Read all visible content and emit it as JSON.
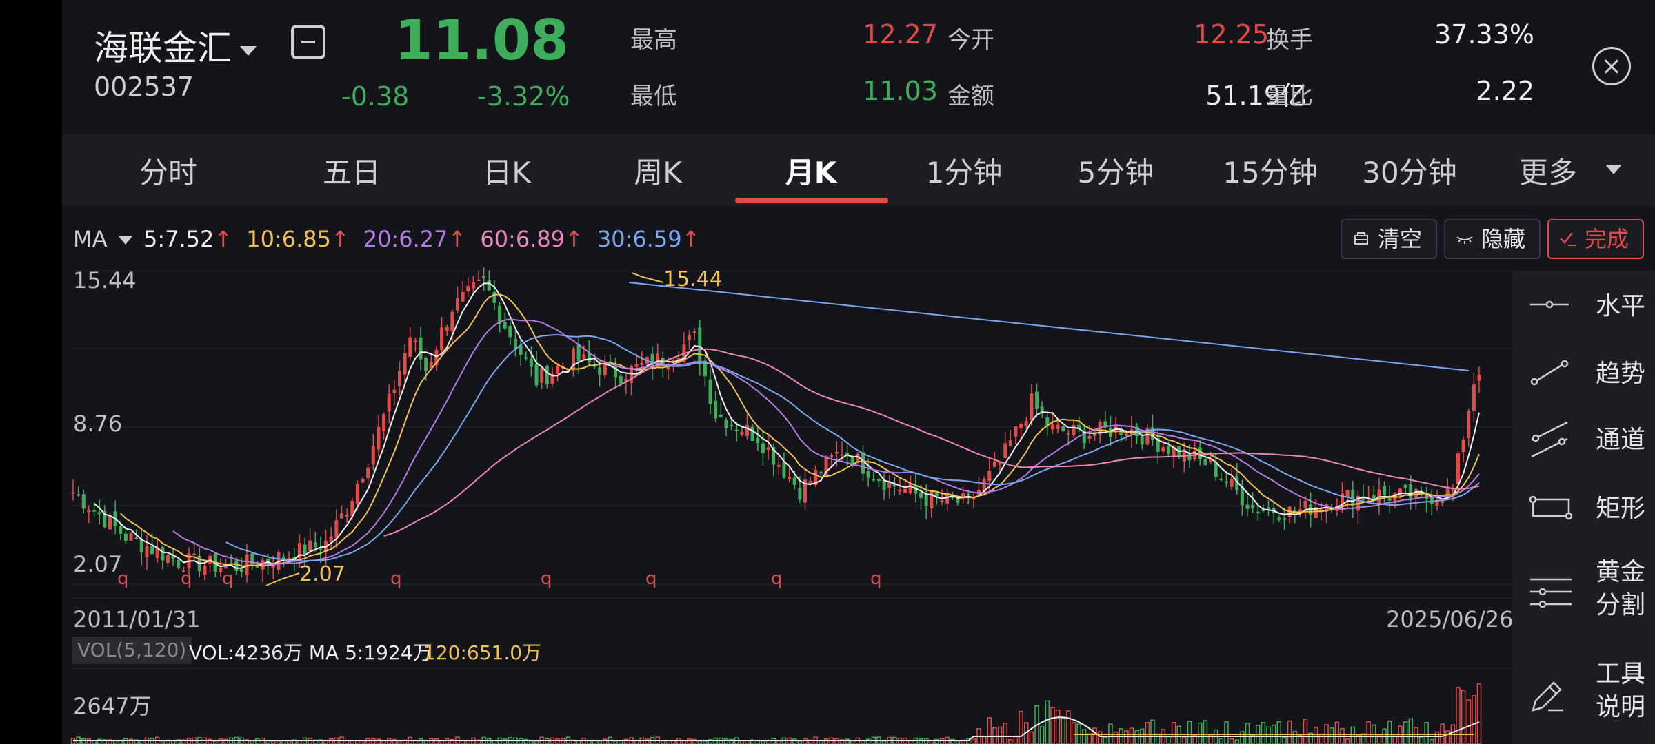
{
  "header": {
    "name": "海联金汇",
    "code": "002537",
    "price": "11.08",
    "change": "-0.38",
    "change_pct": "-3.32%",
    "stats": [
      {
        "label": "最高",
        "value": "12.27",
        "color": "red"
      },
      {
        "label": "今开",
        "value": "12.25",
        "color": "red"
      },
      {
        "label": "换手",
        "value": "37.33%",
        "color": "white"
      },
      {
        "label": "最低",
        "value": "11.03",
        "color": "green"
      },
      {
        "label": "金额",
        "value": "51.19亿",
        "color": "white"
      },
      {
        "label": "量比",
        "value": "2.22",
        "color": "white"
      }
    ]
  },
  "tabs": [
    "分时",
    "五日",
    "日K",
    "周K",
    "月K",
    "1分钟",
    "5分钟",
    "15分钟",
    "30分钟",
    "更多"
  ],
  "active_tab": "月K",
  "ma": {
    "label": "MA",
    "items": [
      {
        "text": "5:7.52",
        "color": "#f0f0f0"
      },
      {
        "text": "10:6.85",
        "color": "#f2c14e"
      },
      {
        "text": "20:6.27",
        "color": "#b77be6"
      },
      {
        "text": "60:6.89",
        "color": "#ef86b6"
      },
      {
        "text": "30:6.59",
        "color": "#7aa7f0"
      }
    ],
    "arrow": "↑"
  },
  "toolbar": {
    "clear": "清空",
    "hide": "隐藏",
    "done": "完成"
  },
  "chart": {
    "y_max_label": "15.44",
    "y_mid_label": "8.76",
    "y_min_label": "2.07",
    "peak_label": "15.44",
    "low_label": "2.07",
    "start_date": "2011/01/31",
    "end_date": "2025/06/26",
    "q_marker": "q"
  },
  "volume": {
    "box_label": "VOL(5,120)",
    "vol_text": "VOL:4236万 MA 5:1924万",
    "ma120_text": "120:651.0万",
    "y_label": "2647万"
  },
  "draw_tools": [
    {
      "label": "水平",
      "icon": "horizontal-line-icon"
    },
    {
      "label": "趋势",
      "icon": "trend-line-icon"
    },
    {
      "label": "通道",
      "icon": "channel-icon"
    },
    {
      "label": "矩形",
      "icon": "rectangle-icon"
    },
    {
      "label": "黄金\n分割",
      "icon": "golden-ratio-icon"
    },
    {
      "label": "工具\n说明",
      "icon": "pencil-icon"
    }
  ],
  "colors": {
    "up": "#e34b4b",
    "down": "#3fae5c",
    "trendline": "#7aa7f0"
  }
}
